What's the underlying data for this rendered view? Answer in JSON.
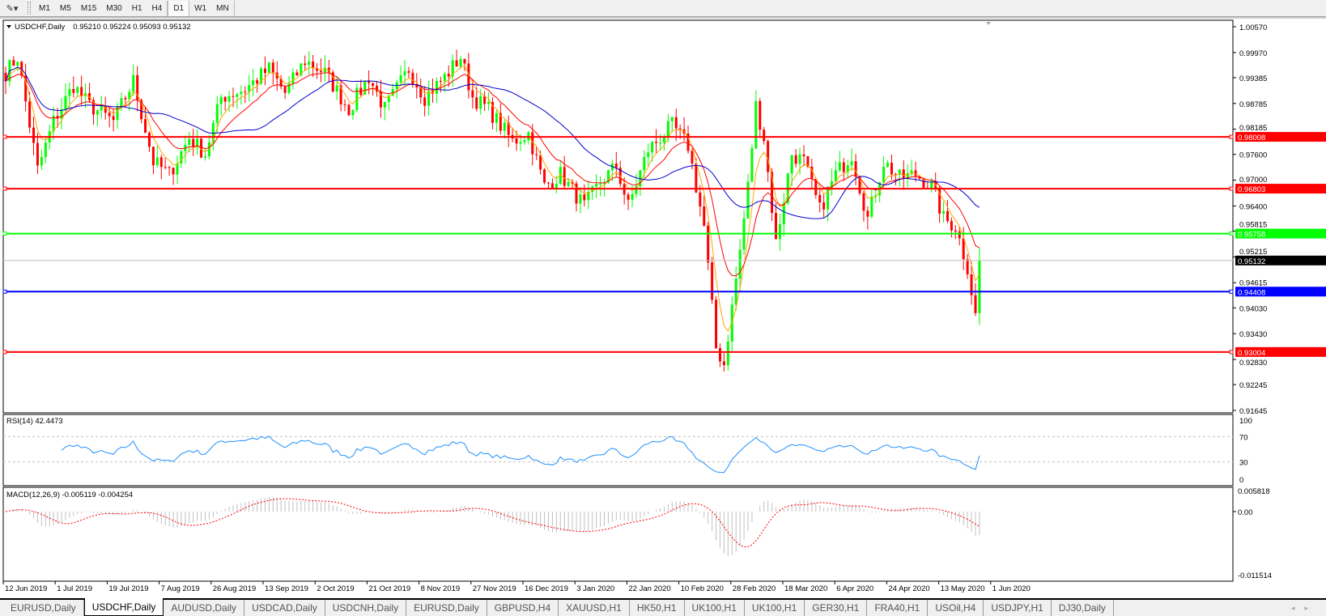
{
  "toolbar": {
    "draw_icon": "line-tool-icon",
    "timeframes": [
      "M1",
      "M5",
      "M15",
      "M30",
      "H1",
      "H4",
      "D1",
      "W1",
      "MN"
    ],
    "active_timeframe": "D1"
  },
  "chart": {
    "header": "USDCHF,Daily",
    "ohlc": "0.95210 0.95224 0.95093 0.95132",
    "price_axis": [
      "1.00570",
      "0.99970",
      "0.99385",
      "0.98785",
      "0.98185",
      "0.97600",
      "0.97000",
      "0.96400",
      "0.95815",
      "0.95215",
      "0.94615",
      "0.94030",
      "0.93430",
      "0.92830",
      "0.92245",
      "0.91645"
    ],
    "hlines": [
      {
        "price": "0.98008",
        "color": "#ff0000"
      },
      {
        "price": "0.96803",
        "color": "#ff0000"
      },
      {
        "price": "0.95758",
        "color": "#00ff00"
      },
      {
        "price": "0.94408",
        "color": "#0000ff"
      },
      {
        "price": "0.93004",
        "color": "#ff0000"
      }
    ],
    "current_price": "0.95132",
    "colors": {
      "bull": "#00ff00",
      "bear": "#ff0000",
      "ma_fast": "#ffa500",
      "ma_mid": "#ff0000",
      "ma_slow": "#0000cd"
    },
    "close_anchors": [
      [
        0,
        0.995
      ],
      [
        3,
        0.9987
      ],
      [
        8,
        0.9724
      ],
      [
        12,
        0.9837
      ],
      [
        17,
        0.9921
      ],
      [
        21,
        0.9874
      ],
      [
        27,
        0.9837
      ],
      [
        32,
        0.9931
      ],
      [
        37,
        0.9743
      ],
      [
        41,
        0.9714
      ],
      [
        46,
        0.9799
      ],
      [
        50,
        0.9761
      ],
      [
        54,
        0.9893
      ],
      [
        60,
        0.9912
      ],
      [
        66,
        0.9959
      ],
      [
        70,
        0.9903
      ],
      [
        75,
        0.9978
      ],
      [
        80,
        0.995
      ],
      [
        86,
        0.9865
      ],
      [
        91,
        0.994
      ],
      [
        95,
        0.9865
      ],
      [
        101,
        0.9959
      ],
      [
        105,
        0.9893
      ],
      [
        110,
        0.994
      ],
      [
        114,
        0.9987
      ],
      [
        117,
        0.9893
      ],
      [
        121,
        0.9865
      ],
      [
        127,
        0.979
      ],
      [
        131,
        0.9809
      ],
      [
        135,
        0.9686
      ],
      [
        139,
        0.9714
      ],
      [
        145,
        0.9639
      ],
      [
        149,
        0.9695
      ],
      [
        153,
        0.9733
      ],
      [
        156,
        0.9639
      ],
      [
        161,
        0.9771
      ],
      [
        167,
        0.9827
      ],
      [
        171,
        0.978
      ],
      [
        175,
        0.9592
      ],
      [
        178,
        0.931
      ],
      [
        180,
        0.9272
      ],
      [
        182,
        0.9404
      ],
      [
        184,
        0.9536
      ],
      [
        186,
        0.9686
      ],
      [
        188,
        0.9874
      ],
      [
        190,
        0.9799
      ],
      [
        193,
        0.9554
      ],
      [
        197,
        0.9761
      ],
      [
        200,
        0.9743
      ],
      [
        204,
        0.963
      ],
      [
        208,
        0.9714
      ],
      [
        212,
        0.9761
      ],
      [
        216,
        0.9611
      ],
      [
        220,
        0.9743
      ],
      [
        224,
        0.9705
      ],
      [
        228,
        0.9714
      ],
      [
        232,
        0.9686
      ],
      [
        235,
        0.9611
      ],
      [
        238,
        0.9592
      ],
      [
        241,
        0.9498
      ],
      [
        243,
        0.9385
      ],
      [
        244,
        0.9513
      ]
    ],
    "dates": [
      "12 Jun 2019",
      "1 Jul 2019",
      "19 Jul 2019",
      "7 Aug 2019",
      "26 Aug 2019",
      "13 Sep 2019",
      "2 Oct 2019",
      "21 Oct 2019",
      "8 Nov 2019",
      "27 Nov 2019",
      "16 Dec 2019",
      "3 Jan 2020",
      "22 Jan 2020",
      "10 Feb 2020",
      "28 Feb 2020",
      "18 Mar 2020",
      "6 Apr 2020",
      "24 Apr 2020",
      "13 May 2020",
      "1 Jun 2020"
    ]
  },
  "rsi": {
    "label": "RSI(14) 42.4473",
    "levels": [
      "100",
      "70",
      "30",
      "0"
    ],
    "color": "#1e90ff"
  },
  "macd": {
    "label": "MACD(12,26,9) -0.005119 -0.004254",
    "axis": [
      "0.005818",
      "0.00",
      "-0.011514"
    ]
  },
  "tabs": [
    "EURUSD,Daily",
    "USDCHF,Daily",
    "AUDUSD,Daily",
    "USDCAD,Daily",
    "USDCNH,Daily",
    "EURUSD,Daily",
    "GBPUSD,H4",
    "XAUUSD,H1",
    "HK50,H1",
    "UK100,H1",
    "UK100,H1",
    "GER30,H1",
    "FRA40,H1",
    "USOil,H4",
    "USDJPY,H1",
    "DJ30,Daily"
  ],
  "active_tab": 1
}
